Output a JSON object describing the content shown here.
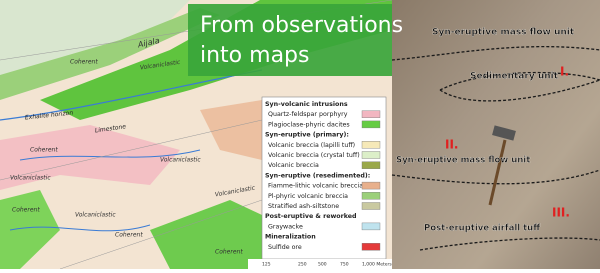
{
  "title": "From observations into maps",
  "map": {
    "labels": [
      "Aijala",
      "Coherent",
      "Volcaniclastic",
      "Exhalite horizon",
      "Limestone",
      "Coherent",
      "Volcaniclastic",
      "Volcaniclastic",
      "Coherent",
      "Volcaniclastic",
      "Coherent",
      "Volcaniclastic",
      "Coherent"
    ],
    "legend": [
      {
        "text": "Syn-volcanic intrusions"
      },
      {
        "text": "Quartz-feldspar porphyry",
        "color": "#f2b6c1"
      },
      {
        "text": "Plagioclase-phyric dacites",
        "color": "#66cc44"
      },
      {
        "text": "Syn-eruptive (primary):"
      },
      {
        "text": "Volcanic breccia (lapilli tuff)",
        "color": "#f6e9b8"
      },
      {
        "text": "Volcanic breccia (crystal tuff)",
        "color": "#dcefc8"
      },
      {
        "text": "Volcanic breccia",
        "color": "#9aa84a"
      },
      {
        "text": "Syn-eruptive (resedimented):"
      },
      {
        "text": "Fiamme-lithic volcanic breccia",
        "color": "#e8b08c"
      },
      {
        "text": "Pl-phyric volcanic breccia",
        "color": "#9bd07a"
      },
      {
        "text": "Stratified ash-siltstone",
        "color": "#c9c9a0"
      },
      {
        "text": "Post-eruptive & reworked"
      },
      {
        "text": "Graywacke",
        "color": "#bfe3ee"
      },
      {
        "text": "Mineralization"
      },
      {
        "text": "Sulfide ore",
        "color": "#e43a3a"
      }
    ],
    "scale": [
      "125",
      "250",
      "500",
      "750",
      "1,000 Meters"
    ]
  },
  "photo": {
    "labels": [
      "Syn-eruptive mass flow unit",
      "Sedimentary unit",
      "I.",
      "II.",
      "Syn-eruptive mass flow unit",
      "III.",
      "Post-eruptive airfall tuff"
    ]
  }
}
